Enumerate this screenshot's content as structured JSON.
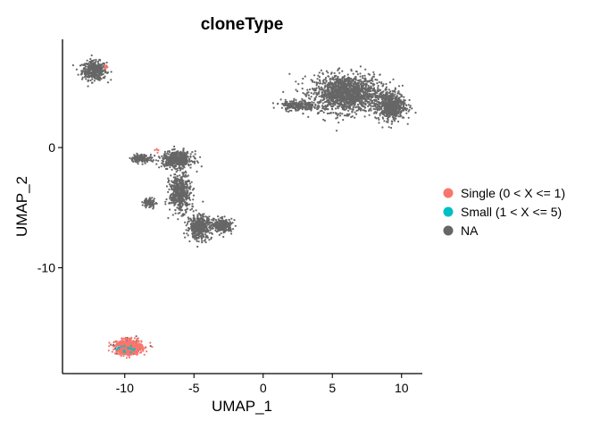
{
  "chart_data": {
    "type": "scatter",
    "title": "cloneType",
    "xlabel": "UMAP_1",
    "ylabel": "UMAP_2",
    "xlim": [
      -14.5,
      11.5
    ],
    "ylim": [
      -18.8,
      9.0
    ],
    "xticks": [
      -10,
      -5,
      0,
      5,
      10
    ],
    "yticks": [
      -10,
      0
    ],
    "grid": false,
    "legend": {
      "position": "right",
      "entries": [
        {
          "label": "Single (0 < X <= 1)",
          "color": "#F8766D"
        },
        {
          "label": "Small (1 < X <= 5)",
          "color": "#00BFC4"
        },
        {
          "label": "NA",
          "color": "#666666"
        }
      ]
    },
    "clusters": [
      {
        "name": "top-left",
        "series": "NA",
        "center": [
          -12.2,
          6.4
        ],
        "spread": [
          0.8,
          0.7
        ],
        "count": 420
      },
      {
        "name": "top-right-main",
        "series": "NA",
        "center": [
          6.0,
          4.5
        ],
        "spread": [
          2.2,
          1.4
        ],
        "count": 1500
      },
      {
        "name": "top-right-lobe",
        "series": "NA",
        "center": [
          9.2,
          3.5
        ],
        "spread": [
          1.0,
          1.1
        ],
        "count": 600
      },
      {
        "name": "top-right-tail",
        "series": "NA",
        "center": [
          2.5,
          3.5
        ],
        "spread": [
          1.1,
          0.4
        ],
        "count": 220
      },
      {
        "name": "mid-upper",
        "series": "NA",
        "center": [
          -6.2,
          -1.0
        ],
        "spread": [
          1.0,
          0.6
        ],
        "count": 520
      },
      {
        "name": "mid-stem",
        "series": "NA",
        "center": [
          -6.0,
          -3.8
        ],
        "spread": [
          0.7,
          1.4
        ],
        "count": 480
      },
      {
        "name": "mid-arm-left",
        "series": "NA",
        "center": [
          -8.8,
          -0.9
        ],
        "spread": [
          0.7,
          0.3
        ],
        "count": 140
      },
      {
        "name": "mid-left-blob",
        "series": "NA",
        "center": [
          -8.2,
          -4.6
        ],
        "spread": [
          0.4,
          0.4
        ],
        "count": 80
      },
      {
        "name": "mid-lower",
        "series": "NA",
        "center": [
          -4.6,
          -6.6
        ],
        "spread": [
          0.8,
          0.9
        ],
        "count": 420
      },
      {
        "name": "mid-right",
        "series": "NA",
        "center": [
          -2.9,
          -6.5
        ],
        "spread": [
          0.6,
          0.5
        ],
        "count": 260
      },
      {
        "name": "bottom-cluster-na",
        "series": "NA",
        "center": [
          -9.7,
          -16.6
        ],
        "spread": [
          0.8,
          0.5
        ],
        "count": 220
      },
      {
        "name": "bottom-cluster",
        "series": "Single (0 < X <= 1)",
        "center": [
          -9.7,
          -16.6
        ],
        "spread": [
          0.85,
          0.55
        ],
        "count": 700
      },
      {
        "name": "top-left-single",
        "series": "Single (0 < X <= 1)",
        "center": [
          -11.4,
          6.7
        ],
        "spread": [
          0.25,
          0.2
        ],
        "count": 6
      },
      {
        "name": "mid-single",
        "series": "Single (0 < X <= 1)",
        "center": [
          -7.5,
          -0.3
        ],
        "spread": [
          0.4,
          0.3
        ],
        "count": 5
      },
      {
        "name": "bottom-small",
        "series": "Small (1 < X <= 5)",
        "center": [
          -10.0,
          -16.8
        ],
        "spread": [
          0.6,
          0.4
        ],
        "count": 18
      }
    ]
  }
}
